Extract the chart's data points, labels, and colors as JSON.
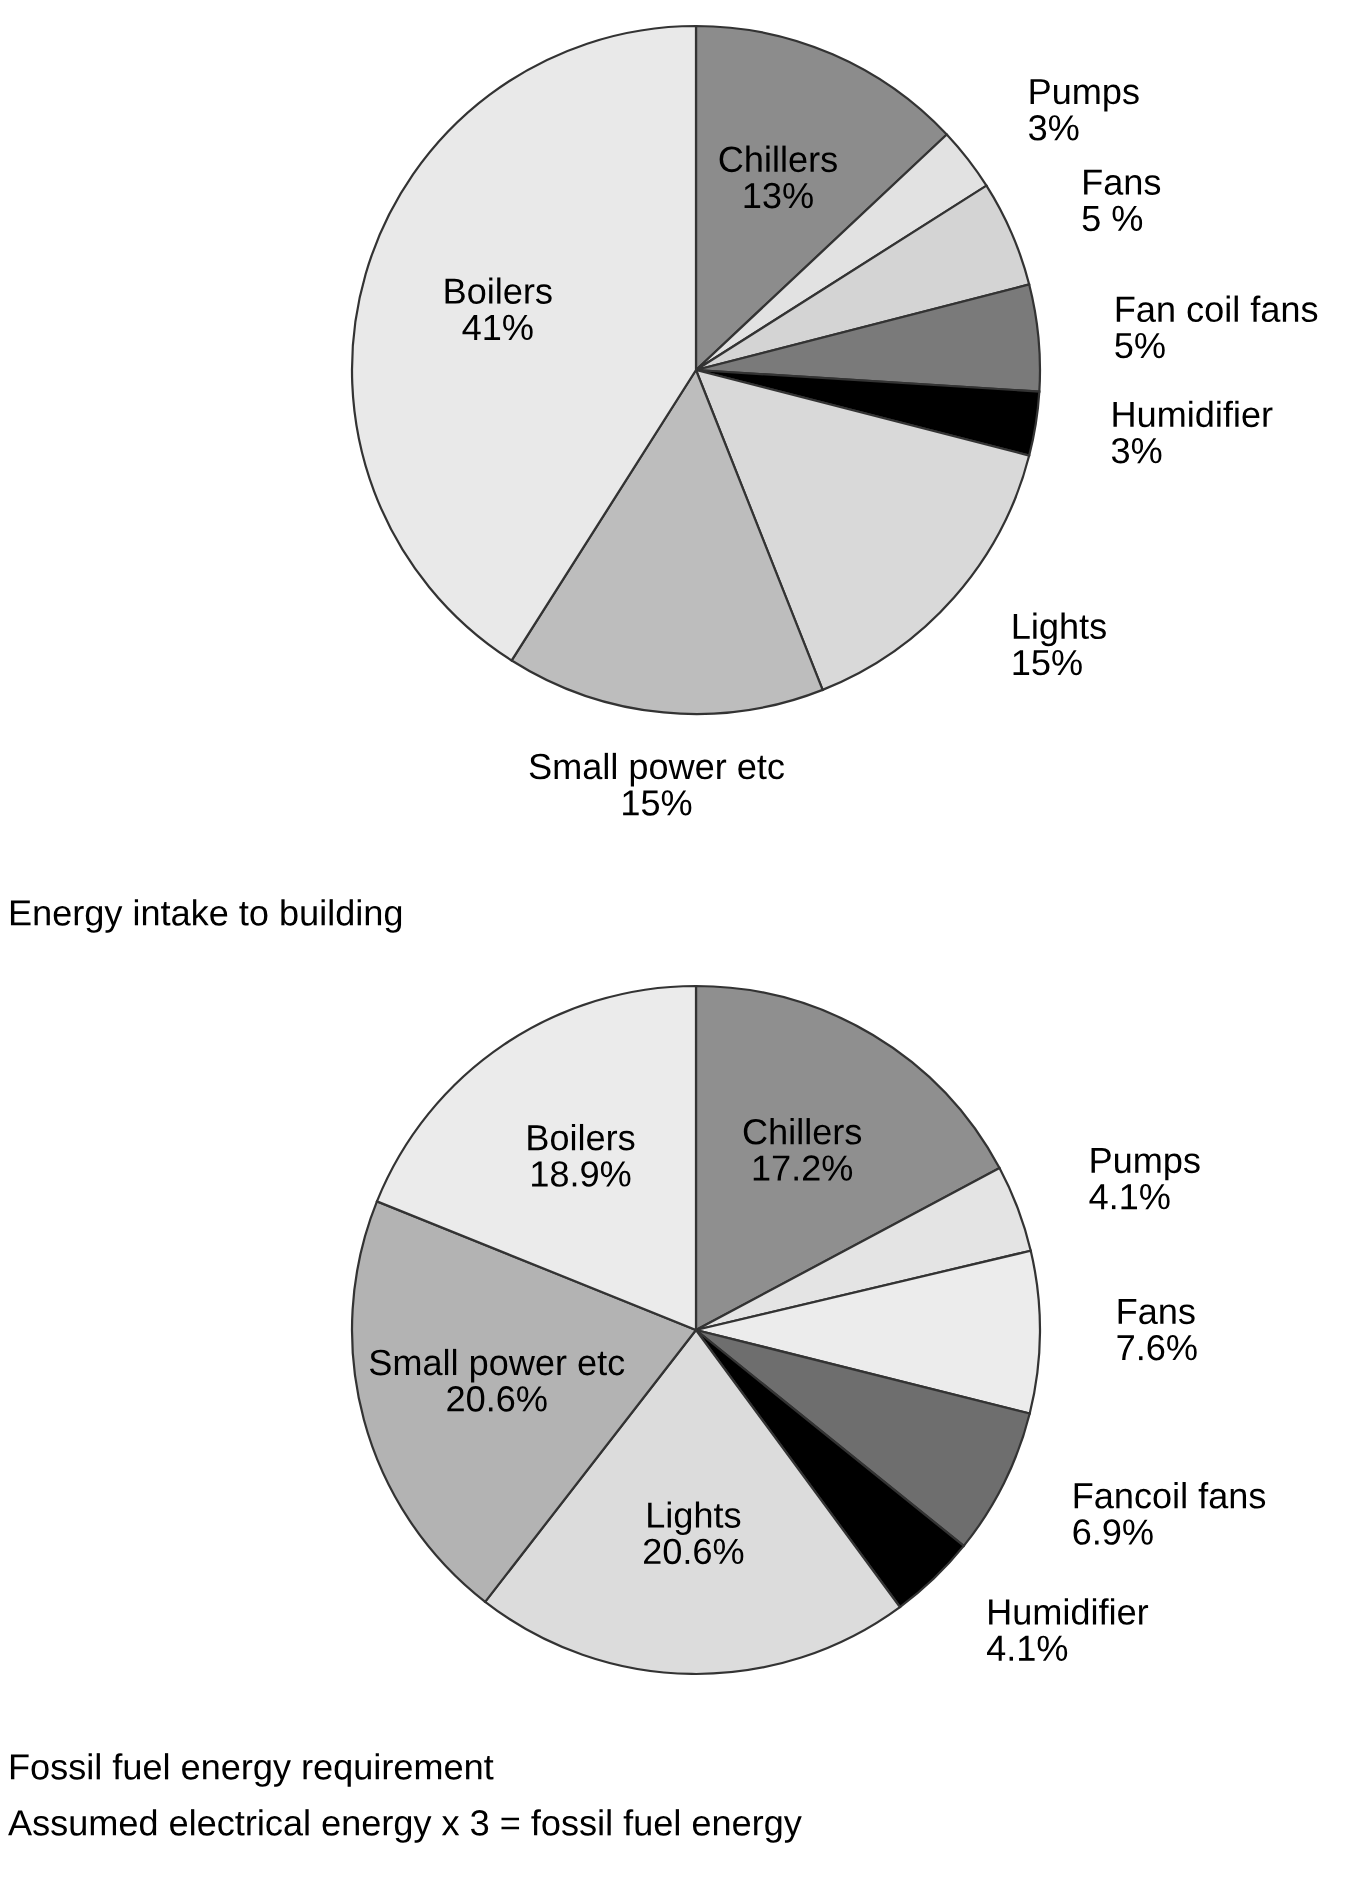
{
  "chart_data": [
    {
      "type": "pie",
      "categories": [
        "Chillers",
        "Pumps",
        "Fans",
        "Fan coil fans",
        "Humidifier",
        "Lights",
        "Small power etc",
        "Boilers"
      ],
      "values": [
        13,
        3,
        5,
        5,
        3,
        15,
        15,
        41
      ],
      "value_labels": [
        "13%",
        "3%",
        "5 %",
        "5%",
        "3%",
        "15%",
        "15%",
        "41%"
      ],
      "colors": [
        "#8c8c8c",
        "#e2e2e2",
        "#d4d4d4",
        "#7a7a7a",
        "#000000",
        "#d9d9d9",
        "#bdbdbd",
        "#e9e9e9"
      ],
      "annotations": [
        "Energy intake to building"
      ]
    },
    {
      "type": "pie",
      "categories": [
        "Chillers",
        "Pumps",
        "Fans",
        "Fancoil fans",
        "Humidifier",
        "Lights",
        "Small power etc",
        "Boilers"
      ],
      "values": [
        17.2,
        4.1,
        7.6,
        6.9,
        4.1,
        20.6,
        20.6,
        18.9
      ],
      "value_labels": [
        "17.2%",
        "4.1%",
        "7.6%",
        "6.9%",
        "4.1%",
        "20.6%",
        "20.6%",
        "18.9%"
      ],
      "colors": [
        "#8f8f8f",
        "#e4e4e4",
        "#ececec",
        "#6e6e6e",
        "#000000",
        "#dcdcdc",
        "#b3b3b3",
        "#ebebeb"
      ],
      "annotations": [
        "Fossil fuel energy requirement",
        "Assumed electrical energy x 3 = fossil fuel energy"
      ]
    }
  ]
}
